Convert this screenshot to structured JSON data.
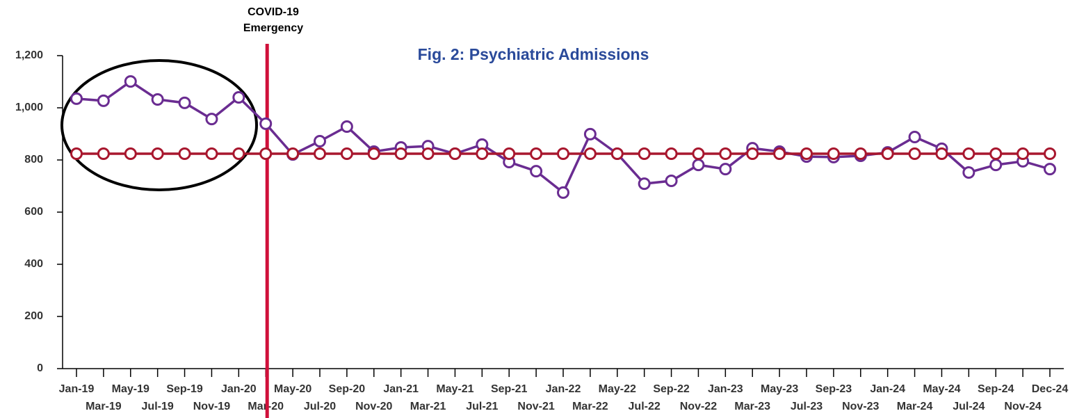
{
  "chart_data": {
    "type": "line",
    "title": "Fig. 2: Psychiatric Admissions",
    "title_color": "#2a4a9a",
    "annotation": [
      "COVID-19",
      "Emergency"
    ],
    "annotation_color": "#d0103a",
    "categories": [
      "Jan-19",
      "Mar-19",
      "May-19",
      "Jul-19",
      "Sep-19",
      "Nov-19",
      "Jan-20",
      "Mar-20",
      "May-20",
      "Jul-20",
      "Sep-20",
      "Nov-20",
      "Jan-21",
      "Mar-21",
      "May-21",
      "Jul-21",
      "Sep-21",
      "Nov-21",
      "Jan-22",
      "Mar-22",
      "May-22",
      "Jul-22",
      "Sep-22",
      "Nov-22",
      "Jan-23",
      "Mar-23",
      "May-23",
      "Jul-23",
      "Sep-23",
      "Nov-23",
      "Jan-24",
      "Mar-24",
      "May-24",
      "Jul-24",
      "Sep-24",
      "Nov-24",
      "Dec-24"
    ],
    "series": [
      {
        "color": "#6a2c91",
        "values": [
          1035,
          1027,
          1101,
          1032,
          1019,
          957,
          1040,
          939,
          821,
          872,
          928,
          832,
          848,
          853,
          824,
          859,
          792,
          757,
          675,
          899,
          824,
          709,
          720,
          781,
          765,
          845,
          832,
          813,
          811,
          816,
          829,
          888,
          843,
          752,
          781,
          795,
          765
        ]
      },
      {
        "color": "#a8172e",
        "values": [
          824,
          824,
          824,
          824,
          824,
          824,
          824,
          824,
          824,
          824,
          824,
          824,
          824,
          824,
          824,
          824,
          824,
          824,
          824,
          824,
          824,
          824,
          824,
          824,
          824,
          824,
          824,
          824,
          824,
          824,
          824,
          824,
          824,
          824,
          824,
          824,
          824
        ]
      }
    ],
    "ylim": [
      0,
      1200
    ],
    "yticks": [
      0,
      200,
      400,
      600,
      800,
      {
        "value": 1000,
        "label": "1,000"
      },
      {
        "value": 1200,
        "label": "1,200"
      }
    ],
    "grid": false
  }
}
